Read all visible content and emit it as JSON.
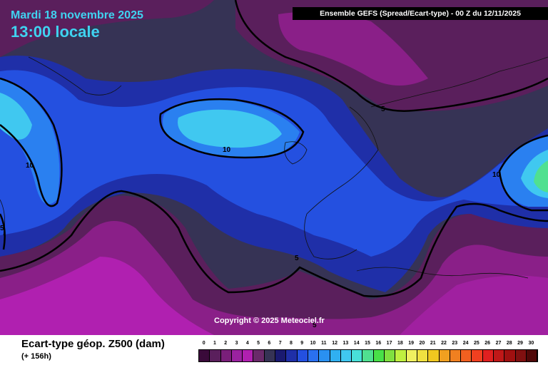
{
  "header": {
    "date": "Mardi 18 novembre 2025",
    "time": "13:00 locale",
    "title": "Ensemble GEFS  (Spread/Ecart-type) - 00 Z du 12/11/2025"
  },
  "map": {
    "copyright": "Copyright © 2025 Meteociel.fr",
    "contour_labels": [
      "10",
      "10",
      "10",
      "5",
      "5",
      "5",
      "5"
    ],
    "colors": {
      "background": "#363355",
      "purple_dark": "#5a1f5c",
      "purple_mid": "#8a1f88",
      "magenta": "#b020b0",
      "blue_dark": "#1f2fa8",
      "blue_mid": "#2450e0",
      "blue_light": "#2a80f0",
      "cyan": "#40c8f0",
      "green": "#50e090"
    }
  },
  "footer": {
    "variable": "Ecart-type géop. Z500 (dam)",
    "lead": "(+ 156h)"
  },
  "scale": {
    "ticks": [
      "0",
      "1",
      "2",
      "3",
      "4",
      "5",
      "6",
      "7",
      "8",
      "9",
      "10",
      "11",
      "12",
      "13",
      "14",
      "15",
      "16",
      "17",
      "18",
      "19",
      "20",
      "21",
      "22",
      "23",
      "24",
      "25",
      "26",
      "27",
      "28",
      "29",
      "30"
    ],
    "colors": [
      "#3a0a3a",
      "#5a1f5c",
      "#7a1f7a",
      "#9a22a0",
      "#b020b0",
      "#6a2a6a",
      "#363355",
      "#1a1a70",
      "#1f2fa8",
      "#2450e0",
      "#2a70f0",
      "#2a90f0",
      "#30b0f0",
      "#40c8f0",
      "#48e0d8",
      "#50e090",
      "#48e048",
      "#80e040",
      "#c0f040",
      "#f0f060",
      "#f0e040",
      "#f0c820",
      "#f0a020",
      "#f08020",
      "#f06020",
      "#f04020",
      "#e02020",
      "#c01818",
      "#a01010",
      "#801010",
      "#500808"
    ]
  }
}
